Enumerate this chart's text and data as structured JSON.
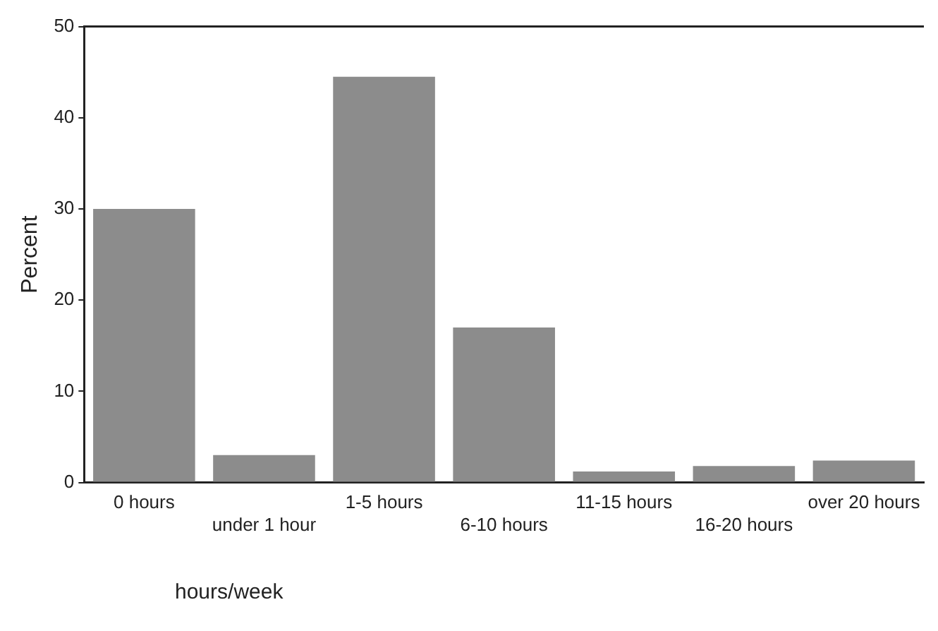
{
  "chart_data": {
    "type": "bar",
    "ylabel": "Percent",
    "xlabel": "hours/week",
    "categories": [
      "0 hours",
      "under 1 hour",
      "1-5 hours",
      "6-10 hours",
      "11-15 hours",
      "16-20 hours",
      "over 20 hours"
    ],
    "values": [
      30,
      3,
      44.5,
      17,
      1.2,
      1.8,
      2.4
    ],
    "color": "#8c8c8c",
    "ylim": [
      0,
      50
    ],
    "yticks": [
      0,
      10,
      20,
      30,
      40,
      50
    ],
    "grid": false,
    "legend": false
  }
}
